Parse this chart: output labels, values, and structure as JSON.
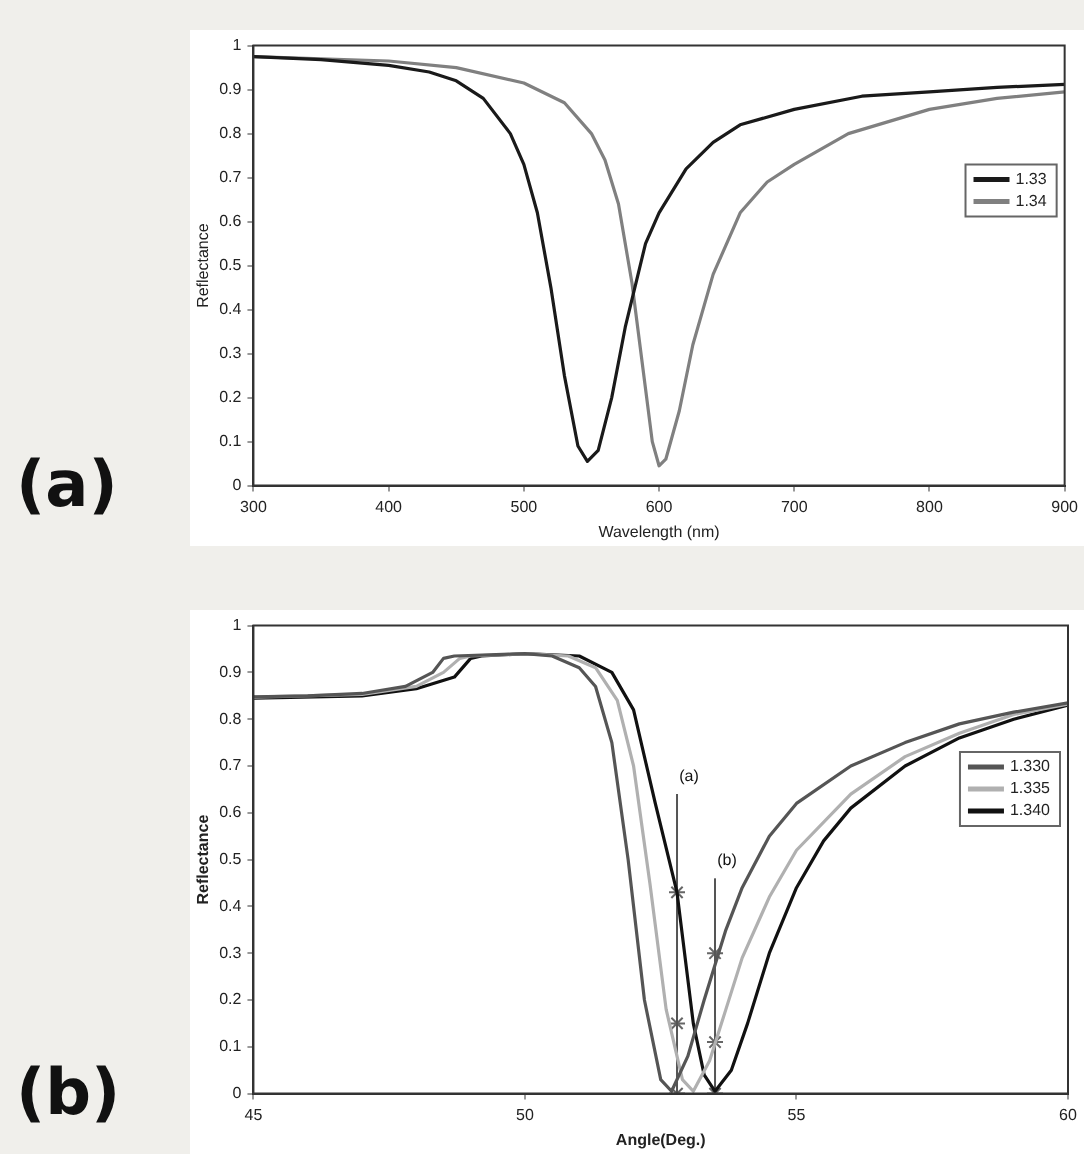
{
  "chart_data": [
    {
      "type": "line",
      "title": "(a)",
      "xlabel": "Wavelength (nm)",
      "ylabel": "Reflectance",
      "xlim": [
        300,
        900
      ],
      "xticks": [
        300,
        400,
        500,
        600,
        700,
        800,
        900
      ],
      "ylim": [
        0,
        1
      ],
      "yticks": [
        0,
        0.1,
        0.2,
        0.3,
        0.4,
        0.5,
        0.6,
        0.7,
        0.8,
        0.9,
        1
      ],
      "legend": "top right",
      "grid": false,
      "marker": "none",
      "line_style": "solid",
      "x": [
        300,
        350,
        400,
        430,
        450,
        470,
        490,
        500,
        510,
        520,
        530,
        540,
        547,
        555,
        565,
        575,
        590,
        600,
        620,
        640,
        660,
        700,
        750,
        800,
        850,
        900
      ],
      "series": [
        {
          "name": "1.33",
          "color": "#1a1a1a",
          "values": [
            0.975,
            0.968,
            0.955,
            0.94,
            0.92,
            0.88,
            0.8,
            0.73,
            0.62,
            0.45,
            0.25,
            0.09,
            0.055,
            0.08,
            0.2,
            0.36,
            0.55,
            0.62,
            0.72,
            0.78,
            0.82,
            0.855,
            0.885,
            0.895,
            0.905,
            0.912
          ]
        },
        {
          "name": "1.34",
          "color": "#808080",
          "x": [
            300,
            400,
            450,
            500,
            530,
            550,
            560,
            570,
            580,
            590,
            595,
            600,
            605,
            615,
            625,
            640,
            660,
            680,
            700,
            740,
            800,
            850,
            900
          ],
          "values": [
            0.975,
            0.965,
            0.95,
            0.915,
            0.87,
            0.8,
            0.74,
            0.64,
            0.46,
            0.22,
            0.1,
            0.045,
            0.06,
            0.17,
            0.32,
            0.48,
            0.62,
            0.69,
            0.73,
            0.8,
            0.855,
            0.88,
            0.895
          ]
        }
      ]
    },
    {
      "type": "line",
      "title": "(b)",
      "xlabel": "Angle(Deg.)",
      "ylabel": "Reflectance",
      "xlim": [
        45,
        60
      ],
      "xticks": [
        45,
        50,
        55,
        60
      ],
      "ylim": [
        0,
        1
      ],
      "yticks": [
        0,
        0.1,
        0.2,
        0.3,
        0.4,
        0.5,
        0.6,
        0.7,
        0.8,
        0.9,
        1
      ],
      "legend": "top right",
      "grid": false,
      "marker": "none",
      "line_style": "solid",
      "annotations": [
        {
          "text": "(a)",
          "x": 52.8,
          "y": 0.66
        },
        {
          "text": "(b)",
          "x": 53.5,
          "y": 0.48
        }
      ],
      "series": [
        {
          "name": "1.330",
          "color": "#555555",
          "x": [
            45,
            46,
            47,
            47.8,
            48.3,
            48.5,
            48.7,
            50,
            50.5,
            51,
            51.3,
            51.6,
            51.9,
            52.2,
            52.5,
            52.7,
            53,
            53.3,
            53.7,
            54,
            54.5,
            55,
            56,
            57,
            58,
            59,
            60
          ],
          "values": [
            0.848,
            0.85,
            0.855,
            0.87,
            0.9,
            0.93,
            0.935,
            0.94,
            0.935,
            0.91,
            0.87,
            0.75,
            0.5,
            0.2,
            0.03,
            0.005,
            0.08,
            0.2,
            0.35,
            0.44,
            0.55,
            0.62,
            0.7,
            0.75,
            0.79,
            0.815,
            0.835
          ]
        },
        {
          "name": "1.335",
          "color": "#b0b0b0",
          "x": [
            45,
            47,
            48,
            48.5,
            48.8,
            49,
            50,
            50.8,
            51.3,
            51.7,
            52,
            52.3,
            52.6,
            52.9,
            53.1,
            53.4,
            53.7,
            54,
            54.5,
            55,
            56,
            57,
            58,
            59,
            60
          ],
          "values": [
            0.847,
            0.853,
            0.87,
            0.9,
            0.93,
            0.935,
            0.94,
            0.935,
            0.91,
            0.84,
            0.7,
            0.45,
            0.18,
            0.03,
            0.005,
            0.07,
            0.18,
            0.29,
            0.42,
            0.52,
            0.64,
            0.72,
            0.77,
            0.81,
            0.832
          ]
        },
        {
          "name": "1.340",
          "color": "#111111",
          "x": [
            45,
            47,
            48,
            48.7,
            49,
            49.2,
            50,
            51,
            51.6,
            52,
            52.4,
            52.8,
            53.1,
            53.3,
            53.5,
            53.8,
            54.1,
            54.5,
            55,
            55.5,
            56,
            57,
            58,
            59,
            60
          ],
          "values": [
            0.845,
            0.85,
            0.865,
            0.89,
            0.93,
            0.935,
            0.94,
            0.935,
            0.9,
            0.82,
            0.62,
            0.43,
            0.15,
            0.04,
            0.005,
            0.05,
            0.15,
            0.3,
            0.44,
            0.54,
            0.61,
            0.7,
            0.76,
            0.8,
            0.83
          ]
        },
        {
          "type": "line",
          "color": "#555555",
          "x": [
            52.8,
            52.8
          ],
          "values": [
            0,
            0.64
          ]
        },
        {
          "type": "line",
          "color": "#555555",
          "x": [
            53.5,
            53.5
          ],
          "values": [
            0,
            0.46
          ]
        },
        {
          "type": "scatter",
          "marker": "cross",
          "color": "#666666",
          "x": [
            52.8,
            52.8,
            52.8,
            53.5,
            53.5,
            53.5
          ],
          "values": [
            0,
            0.15,
            0.43,
            0,
            0.11,
            0.3
          ]
        }
      ]
    }
  ]
}
